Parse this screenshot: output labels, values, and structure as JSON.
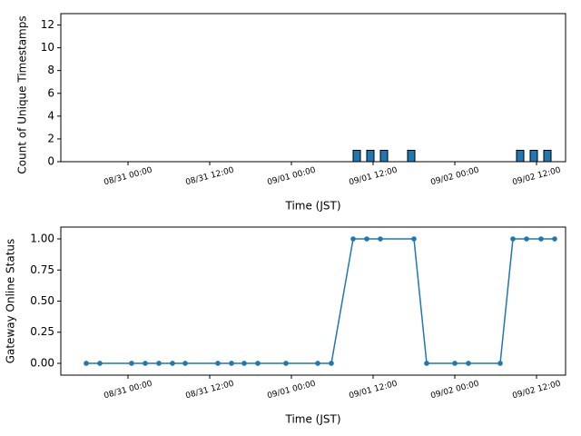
{
  "chart_data": [
    {
      "type": "bar",
      "x": [
        "09/01 09:36",
        "09/01 11:36",
        "09/01 13:36",
        "09/01 17:36",
        "09/02 09:36",
        "09/02 11:36",
        "09/02 13:36"
      ],
      "values": [
        1,
        1,
        1,
        1,
        1,
        1,
        1
      ],
      "color": "#1f77b4",
      "xlabel": "Time (JST)",
      "ylabel": "Count of Unique Timestamps",
      "xlim": [
        "08/30 14:08",
        "09/02 16:16"
      ],
      "xticks": [
        "08/31 00:00",
        "08/31 12:00",
        "09/01 00:00",
        "09/01 12:00",
        "09/02 00:00",
        "09/02 12:00"
      ],
      "ylim": [
        0,
        13
      ],
      "yticks": [
        0,
        2,
        4,
        6,
        8,
        10,
        12
      ]
    },
    {
      "type": "line",
      "x": [
        "08/30 17:52",
        "08/30 19:52",
        "08/31 00:32",
        "08/31 02:32",
        "08/31 04:32",
        "08/31 06:32",
        "08/31 08:24",
        "08/31 13:12",
        "08/31 15:12",
        "08/31 17:04",
        "08/31 19:04",
        "08/31 23:12",
        "09/01 03:52",
        "09/01 05:52",
        "09/01 09:04",
        "09/01 11:04",
        "09/01 13:04",
        "09/01 18:00",
        "09/01 19:52",
        "09/02 00:00",
        "09/02 02:00",
        "09/02 06:40",
        "09/02 08:32",
        "09/02 10:32",
        "09/02 12:40",
        "09/02 14:40"
      ],
      "values": [
        0,
        0,
        0,
        0,
        0,
        0,
        0,
        0,
        0,
        0,
        0,
        0,
        0,
        0,
        1,
        1,
        1,
        1,
        0,
        0,
        0,
        0,
        1,
        1,
        1,
        1
      ],
      "color": "#1f77b4",
      "xlabel": "Time (JST)",
      "ylabel": "Gateway Online Status",
      "xlim": [
        "08/30 14:08",
        "09/02 16:16"
      ],
      "xticks": [
        "08/31 00:00",
        "08/31 12:00",
        "09/01 00:00",
        "09/01 12:00",
        "09/02 00:00",
        "09/02 12:00"
      ],
      "ylim": [
        -0.095,
        1.095
      ],
      "yticks": [
        {
          "value": 0,
          "label": "0.00"
        },
        {
          "value": 0.25,
          "label": "0.25"
        },
        {
          "value": 0.5,
          "label": "0.50"
        },
        {
          "value": 0.75,
          "label": "0.75"
        },
        {
          "value": 1,
          "label": "1.00"
        }
      ]
    }
  ]
}
